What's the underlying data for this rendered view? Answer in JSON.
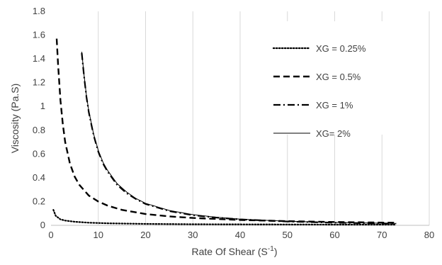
{
  "chart_data": {
    "type": "line",
    "title": "",
    "xlabel": {
      "main": "Rate Of Shear (S",
      "sup": "-1",
      "close": ")"
    },
    "ylabel": "Viscosity (Pa.S)",
    "xlim": [
      0,
      80
    ],
    "ylim": [
      0,
      1.8
    ],
    "x_ticks": [
      "0",
      "10",
      "20",
      "30",
      "40",
      "50",
      "60",
      "70",
      "80"
    ],
    "y_ticks": [
      "0",
      "0.2",
      "0.4",
      "0.6",
      "0.8",
      "1",
      "1.2",
      "1.4",
      "1.6",
      "1.8"
    ],
    "grid": "vertical",
    "legend_position": "top-right",
    "series": [
      {
        "name": "XG = 0.25%",
        "style": "dotted",
        "x": [
          0.5,
          1,
          2,
          3,
          5,
          8,
          12,
          20,
          30,
          40,
          50,
          60,
          70,
          73
        ],
        "y": [
          0.13,
          0.08,
          0.05,
          0.04,
          0.03,
          0.022,
          0.017,
          0.012,
          0.009,
          0.008,
          0.007,
          0.006,
          0.006,
          0.006
        ]
      },
      {
        "name": "XG = 0.5%",
        "style": "dashed",
        "x": [
          1.2,
          1.5,
          2,
          2.5,
          3,
          4,
          5,
          6,
          8,
          10,
          12,
          15,
          20,
          25,
          30,
          40,
          50,
          60,
          70,
          73
        ],
        "y": [
          1.57,
          1.35,
          1.05,
          0.85,
          0.7,
          0.52,
          0.41,
          0.34,
          0.25,
          0.2,
          0.165,
          0.13,
          0.095,
          0.075,
          0.062,
          0.045,
          0.035,
          0.028,
          0.023,
          0.022
        ]
      },
      {
        "name": "XG = 1%",
        "style": "dashdot",
        "x": [
          6.5,
          7,
          7.5,
          8,
          9,
          10,
          11,
          12,
          14,
          16,
          18,
          20,
          25,
          30,
          35,
          40,
          50,
          60,
          70,
          73
        ],
        "y": [
          1.45,
          1.25,
          1.08,
          0.95,
          0.76,
          0.62,
          0.52,
          0.45,
          0.34,
          0.27,
          0.22,
          0.18,
          0.12,
          0.085,
          0.065,
          0.05,
          0.032,
          0.022,
          0.016,
          0.014
        ]
      },
      {
        "name": "XG= 2%",
        "style": "solid",
        "x": [
          6.5,
          7,
          7.5,
          8,
          9,
          10,
          11,
          12,
          14,
          16,
          18,
          20,
          25,
          30,
          35,
          40,
          50,
          60,
          70,
          73
        ],
        "y": [
          1.46,
          1.26,
          1.09,
          0.96,
          0.77,
          0.63,
          0.53,
          0.46,
          0.35,
          0.28,
          0.225,
          0.185,
          0.125,
          0.09,
          0.068,
          0.052,
          0.034,
          0.024,
          0.018,
          0.016
        ]
      }
    ]
  }
}
